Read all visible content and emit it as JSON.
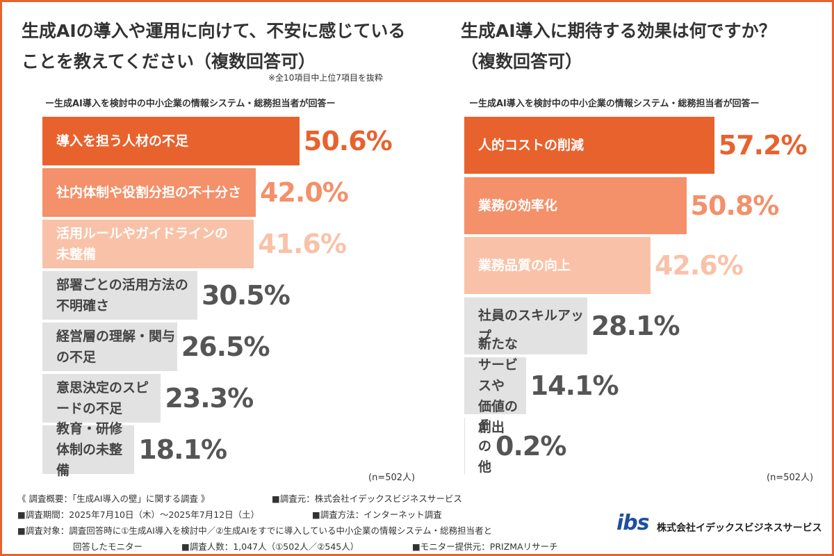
{
  "chart_data": [
    {
      "type": "bar",
      "orientation": "horizontal",
      "title": "生成AIの導入や運用に向けて、不安に感じている\nことを教えてください（複数回答可）",
      "note": "※全10項目中上位7項目を抜粋",
      "subtitle": "ー生成AI導入を検討中の中小企業の情報システム・総務担当者が回答ー",
      "sample": "(n=502人)",
      "categories": [
        "導入を担う人材の不足",
        "社内体制や役割分担の不十分さ",
        "活用ルールやガイドラインの\n未整備",
        "部署ごとの活用方法の不明確さ",
        "経営層の理解・関与の不足",
        "意思決定のスピードの不足",
        "教育・研修体制の未整備"
      ],
      "values": [
        50.6,
        42.0,
        41.6,
        30.5,
        26.5,
        23.3,
        18.1
      ],
      "value_labels": [
        "50.6%",
        "42.0%",
        "41.6%",
        "30.5%",
        "26.5%",
        "23.3%",
        "18.1%"
      ],
      "colors": [
        "#e8622e",
        "#f4906a",
        "#f9c2a8",
        "#e2e2e2",
        "#e2e2e2",
        "#e2e2e2",
        "#e2e2e2"
      ],
      "label_colors": [
        "#ffffff",
        "#ffffff",
        "#ffffff",
        "#444444",
        "#444444",
        "#444444",
        "#444444"
      ],
      "value_colors": [
        "#e8622e",
        "#f4906a",
        "#f9c2a8",
        "#555555",
        "#555555",
        "#555555",
        "#555555"
      ],
      "xlim": [
        0,
        100
      ]
    },
    {
      "type": "bar",
      "orientation": "horizontal",
      "title": "生成AI導入に期待する効果は何ですか？\n（複数回答可）",
      "subtitle": "ー生成AI導入を検討中の中小企業の情報システム・総務担当者が回答ー",
      "sample": "(n=502人)",
      "categories": [
        "人的コストの削減",
        "業務の効率化",
        "業務品質の向上",
        "社員のスキルアップ",
        "新たなサービスや\n価値の創出",
        "その他"
      ],
      "values": [
        57.2,
        50.8,
        42.6,
        28.1,
        14.1,
        0.2
      ],
      "value_labels": [
        "57.2%",
        "50.8%",
        "42.6%",
        "28.1%",
        "14.1%",
        "0.2%"
      ],
      "colors": [
        "#e8622e",
        "#f4906a",
        "#f9c2a8",
        "#e2e2e2",
        "#e2e2e2",
        "#e2e2e2"
      ],
      "label_colors": [
        "#ffffff",
        "#ffffff",
        "#ffffff",
        "#444444",
        "#444444",
        "#444444"
      ],
      "value_colors": [
        "#e8622e",
        "#f4906a",
        "#f9c2a8",
        "#555555",
        "#555555",
        "#555555"
      ],
      "xlim": [
        0,
        100
      ]
    }
  ],
  "footer": {
    "items": [
      "《 調査概要：「生成AI導入の壁」に関する調査 》",
      "■調査元：株式会社イデックスビジネスサービス",
      "■調査期間：2025年7月10日（木）〜2025年7月12日（土）",
      "■調査方法：インターネット調査",
      "■調査対象：調査回答時に①生成AI導入を検討中／②生成AIをすでに導入している中小企業の情報システム・総務担当者と",
      "回答したモニター",
      "■調査人数：1,047人（①502人／②545人）",
      "■モニター提供元：PRIZMAリサーチ"
    ]
  },
  "logo": {
    "mark": "ibs",
    "company": "株式会社イデックスビジネスサービス"
  }
}
